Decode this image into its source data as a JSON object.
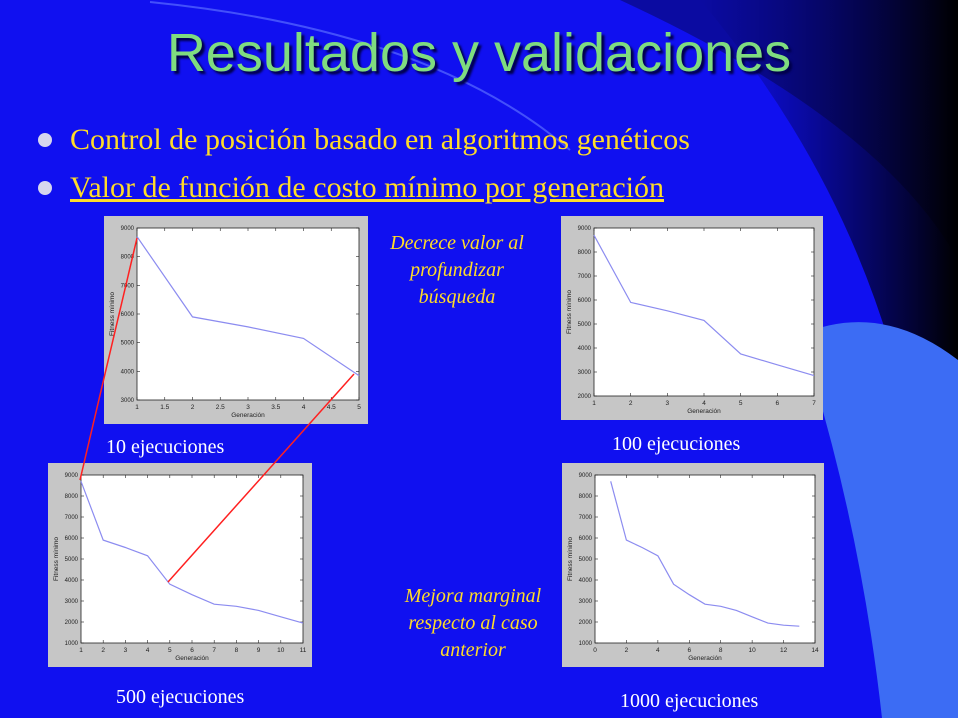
{
  "slide": {
    "title": "Resultados y validaciones",
    "bullets": [
      "Control de posición basado en algoritmos genéticos",
      "Valor de función de costo mínimo por generación"
    ],
    "notes": {
      "top": [
        "Decrece valor al",
        "profundizar",
        "búsqueda"
      ],
      "bottom": [
        "Mejora marginal",
        "respecto al caso",
        "anterior"
      ]
    },
    "colors": {
      "background": "#1010f0",
      "title": "#7fdc7f",
      "bullet_text": "#ffdc28",
      "caption": "#ffffff",
      "connector": "#ff2020",
      "plot_line": "#8c8cf0"
    }
  },
  "chart_data": [
    {
      "type": "line",
      "caption": "10 ejecuciones",
      "xlabel": "Generación",
      "ylabel": "Fitness mínimo",
      "xlim": [
        1,
        5
      ],
      "ylim": [
        3000,
        9000
      ],
      "xticks": [
        1,
        1.5,
        2,
        2.5,
        3,
        3.5,
        4,
        4.5,
        5
      ],
      "yticks": [
        3000,
        4000,
        5000,
        6000,
        7000,
        8000,
        9000
      ],
      "x": [
        1,
        2,
        3,
        4,
        5
      ],
      "y": [
        8700,
        5900,
        5550,
        5150,
        3850
      ]
    },
    {
      "type": "line",
      "caption": "100 ejecuciones",
      "xlabel": "Generación",
      "ylabel": "Fitness mínimo",
      "xlim": [
        1,
        7
      ],
      "ylim": [
        2000,
        9000
      ],
      "xticks": [
        1,
        2,
        3,
        4,
        5,
        6,
        7
      ],
      "yticks": [
        2000,
        3000,
        4000,
        5000,
        6000,
        7000,
        8000,
        9000
      ],
      "x": [
        1,
        2,
        3,
        4,
        5,
        6,
        7
      ],
      "y": [
        8700,
        5900,
        5550,
        5150,
        3750,
        3300,
        2850
      ]
    },
    {
      "type": "line",
      "caption": "500 ejecuciones",
      "xlabel": "Generación",
      "ylabel": "Fitness mínimo",
      "xlim": [
        1,
        11
      ],
      "ylim": [
        1000,
        9000
      ],
      "xticks": [
        1,
        2,
        3,
        4,
        5,
        6,
        7,
        8,
        9,
        10,
        11
      ],
      "yticks": [
        1000,
        2000,
        3000,
        4000,
        5000,
        6000,
        7000,
        8000,
        9000
      ],
      "x": [
        1,
        2,
        3,
        4,
        5,
        6,
        7,
        8,
        9,
        10,
        11
      ],
      "y": [
        8700,
        5900,
        5550,
        5150,
        3800,
        3300,
        2850,
        2750,
        2550,
        2250,
        1950
      ]
    },
    {
      "type": "line",
      "caption": "1000 ejecuciones",
      "xlabel": "Generación",
      "ylabel": "Fitness mínimo",
      "xlim": [
        0,
        14
      ],
      "ylim": [
        1000,
        9000
      ],
      "xticks": [
        0,
        2,
        4,
        6,
        8,
        10,
        12,
        14
      ],
      "yticks": [
        1000,
        2000,
        3000,
        4000,
        5000,
        6000,
        7000,
        8000,
        9000
      ],
      "x": [
        1,
        2,
        3,
        4,
        5,
        6,
        7,
        8,
        9,
        10,
        11,
        12,
        13
      ],
      "y": [
        8700,
        5900,
        5550,
        5150,
        3800,
        3300,
        2850,
        2750,
        2550,
        2250,
        1950,
        1850,
        1800
      ]
    }
  ]
}
